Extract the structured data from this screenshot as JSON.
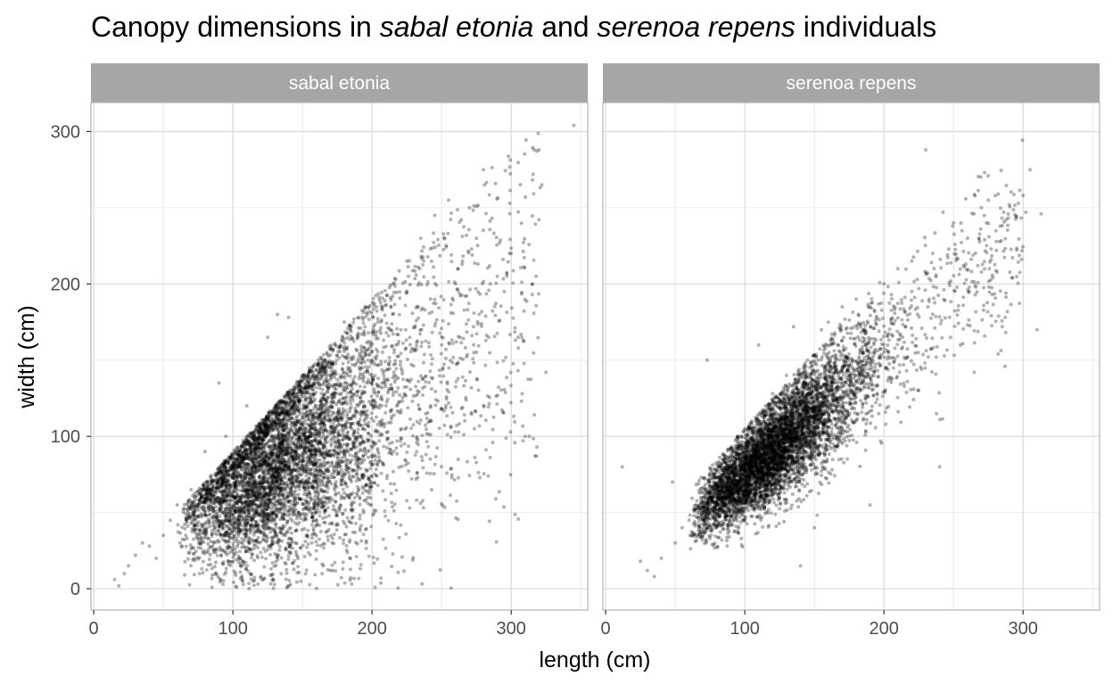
{
  "chart_data": {
    "type": "scatter",
    "title": {
      "prefix": "Canopy dimensions in ",
      "species_a": "sabal etonia",
      "middle": " and ",
      "species_b": "serenoa repens",
      "suffix": " individuals"
    },
    "xlabel": "length (cm)",
    "ylabel": "width (cm)",
    "xlim": [
      -2,
      355
    ],
    "ylim": [
      -14,
      319
    ],
    "x_ticks": [
      0,
      100,
      200,
      300
    ],
    "x_tick_labels": [
      "0",
      "100",
      "200",
      "300"
    ],
    "y_ticks": [
      0,
      100,
      200,
      300
    ],
    "y_tick_labels": [
      "0",
      "100",
      "200",
      "300"
    ],
    "grid": true,
    "legend": "none",
    "point_color": "#000000",
    "point_alpha": 0.3,
    "strip_color": "#a6a6a6",
    "panel_border_color": "#b3b3b3",
    "grid_major_color": "#d9d9d9",
    "grid_minor_color": "#ebebeb",
    "panels": [
      {
        "name": "sabal etonia",
        "n_points": 6200,
        "distribution_note": "dense cloud x 60-200, y 30-200; fan widening with length",
        "points": [
          [
            15,
            6
          ],
          [
            18,
            2
          ],
          [
            22,
            10
          ],
          [
            25,
            15
          ],
          [
            30,
            22
          ],
          [
            35,
            30
          ],
          [
            40,
            28
          ],
          [
            45,
            20
          ],
          [
            50,
            35
          ],
          [
            55,
            45
          ],
          [
            60,
            55
          ],
          [
            62,
            30
          ],
          [
            70,
            65
          ],
          [
            75,
            48
          ],
          [
            80,
            90
          ],
          [
            85,
            70
          ],
          [
            90,
            135
          ],
          [
            95,
            100
          ],
          [
            100,
            80
          ],
          [
            105,
            60
          ],
          [
            110,
            120
          ],
          [
            115,
            95
          ],
          [
            120,
            105
          ],
          [
            125,
            165
          ],
          [
            130,
            110
          ],
          [
            132,
            180
          ],
          [
            140,
            178
          ],
          [
            145,
            90
          ],
          [
            150,
            140
          ],
          [
            160,
            80
          ],
          [
            165,
            15
          ],
          [
            170,
            12
          ],
          [
            180,
            175
          ],
          [
            190,
            120
          ],
          [
            200,
            150
          ],
          [
            210,
            120
          ],
          [
            215,
            200
          ],
          [
            225,
            215
          ],
          [
            235,
            230
          ],
          [
            245,
            245
          ],
          [
            250,
            160
          ],
          [
            255,
            255
          ],
          [
            260,
            200
          ],
          [
            265,
            215
          ],
          [
            270,
            250
          ],
          [
            275,
            230
          ],
          [
            280,
            275
          ],
          [
            285,
            200
          ],
          [
            290,
            205
          ],
          [
            295,
            195
          ],
          [
            300,
            220
          ],
          [
            305,
            165
          ],
          [
            310,
            100
          ],
          [
            315,
            200
          ],
          [
            320,
            288
          ],
          [
            322,
            265
          ],
          [
            325,
            142
          ],
          [
            345,
            304
          ]
        ]
      },
      {
        "name": "serenoa repens",
        "n_points": 6400,
        "distribution_note": "tight linear band x 35-200, y 10-200; widens with length",
        "points": [
          [
            12,
            80
          ],
          [
            25,
            18
          ],
          [
            30,
            12
          ],
          [
            35,
            8
          ],
          [
            40,
            20
          ],
          [
            48,
            70
          ],
          [
            50,
            30
          ],
          [
            55,
            40
          ],
          [
            60,
            45
          ],
          [
            65,
            55
          ],
          [
            70,
            60
          ],
          [
            73,
            150
          ],
          [
            75,
            70
          ],
          [
            80,
            78
          ],
          [
            85,
            85
          ],
          [
            90,
            92
          ],
          [
            95,
            100
          ],
          [
            100,
            105
          ],
          [
            105,
            110
          ],
          [
            110,
            160
          ],
          [
            115,
            120
          ],
          [
            120,
            128
          ],
          [
            130,
            140
          ],
          [
            135,
            172
          ],
          [
            140,
            15
          ],
          [
            145,
            150
          ],
          [
            150,
            40
          ],
          [
            155,
            170
          ],
          [
            160,
            175
          ],
          [
            170,
            185
          ],
          [
            180,
            190
          ],
          [
            190,
            55
          ],
          [
            200,
            200
          ],
          [
            210,
            210
          ],
          [
            220,
            215
          ],
          [
            230,
            288
          ],
          [
            235,
            220
          ],
          [
            240,
            80
          ],
          [
            250,
            240
          ],
          [
            255,
            160
          ],
          [
            260,
            230
          ],
          [
            270,
            250
          ],
          [
            275,
            255
          ],
          [
            280,
            258
          ],
          [
            285,
            172
          ],
          [
            290,
            252
          ],
          [
            300,
            258
          ],
          [
            302,
            247
          ],
          [
            305,
            275
          ],
          [
            310,
            170
          ],
          [
            313,
            246
          ]
        ]
      }
    ]
  }
}
